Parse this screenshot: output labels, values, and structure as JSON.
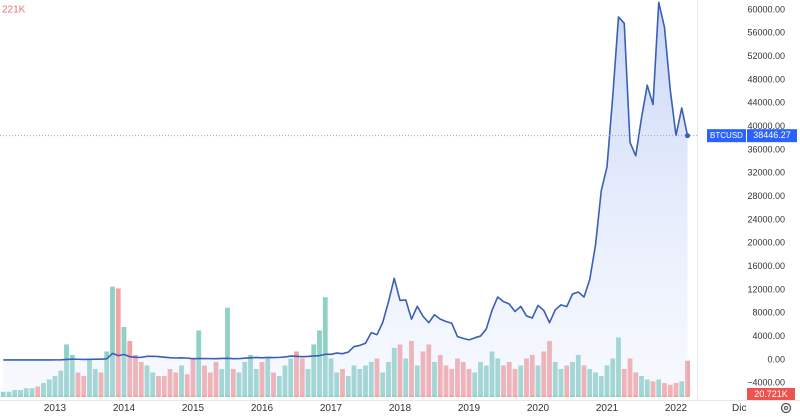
{
  "chart_data": {
    "type": "line",
    "categories": [
      null,
      null,
      null,
      null,
      null,
      null,
      null,
      null,
      null,
      "2013",
      null,
      null,
      null,
      null,
      null,
      null,
      null,
      null,
      null,
      null,
      null,
      "2014",
      null,
      null,
      null,
      null,
      null,
      null,
      null,
      null,
      null,
      null,
      null,
      "2015",
      null,
      null,
      null,
      null,
      null,
      null,
      null,
      null,
      null,
      null,
      null,
      "2016",
      null,
      null,
      null,
      null,
      null,
      null,
      null,
      null,
      null,
      null,
      null,
      "2017",
      null,
      null,
      null,
      null,
      null,
      null,
      null,
      null,
      null,
      null,
      null,
      "2018",
      null,
      null,
      null,
      null,
      null,
      null,
      null,
      null,
      null,
      null,
      null,
      "2019",
      null,
      null,
      null,
      null,
      null,
      null,
      null,
      null,
      null,
      null,
      null,
      "2020",
      null,
      null,
      null,
      null,
      null,
      null,
      null,
      null,
      null,
      null,
      null,
      "2021",
      null,
      null,
      null,
      null,
      null,
      null,
      null,
      null,
      null,
      null,
      null,
      "2022",
      null,
      null,
      null,
      null,
      null,
      null,
      null,
      null,
      null,
      null,
      "Dic"
    ],
    "series": [
      {
        "name": "BTCUSD",
        "color": "#3a5fb5",
        "values": [
          5,
          5,
          7,
          9,
          10,
          12,
          11,
          12,
          13,
          20,
          33,
          93,
          139,
          129,
          97,
          106,
          135,
          133,
          198,
          1130,
          750,
          940,
          570,
          460,
          450,
          630,
          640,
          590,
          480,
          390,
          340,
          380,
          320,
          220,
          250,
          245,
          235,
          230,
          260,
          285,
          230,
          235,
          315,
          380,
          430,
          370,
          435,
          415,
          450,
          530,
          670,
          625,
          575,
          610,
          700,
          745,
          965,
          970,
          1190,
          1080,
          1350,
          2300,
          2500,
          2870,
          4700,
          4340,
          6450,
          10000,
          14000,
          10200,
          10300,
          7000,
          9200,
          7500,
          6400,
          7750,
          7000,
          6600,
          6300,
          4000,
          3700,
          3450,
          3800,
          4100,
          5300,
          8500,
          10800,
          10000,
          9600,
          8300,
          9200,
          7550,
          7200,
          9350,
          8500,
          6400,
          8600,
          9450,
          9150,
          11300,
          11650,
          10800,
          13800,
          19700,
          29000,
          33100,
          45200,
          58800,
          57700,
          37300,
          35000,
          41500,
          47100,
          43800,
          61300,
          57000,
          46300,
          38500,
          43200,
          38446.27,
          null,
          null,
          null,
          null,
          null,
          null,
          null,
          null,
          null
        ]
      }
    ],
    "ylim": [
      -6000,
      61700
    ],
    "yticks": [
      {
        "value": 60000,
        "label": "60000.00"
      },
      {
        "value": 56000,
        "label": "56000.00"
      },
      {
        "value": 52000,
        "label": "52000.00"
      },
      {
        "value": 48000,
        "label": "48000.00"
      },
      {
        "value": 44000,
        "label": "44000.00"
      },
      {
        "value": 40000,
        "label": "40000.00"
      },
      {
        "value": 36000,
        "label": "36000.00"
      },
      {
        "value": 32000,
        "label": "32000.00"
      },
      {
        "value": 28000,
        "label": "28000.00"
      },
      {
        "value": 24000,
        "label": "24000.00"
      },
      {
        "value": 20000,
        "label": "20000.00"
      },
      {
        "value": 16000,
        "label": "16000.00"
      },
      {
        "value": 12000,
        "label": "12000.00"
      },
      {
        "value": 8000,
        "label": "8000.00"
      },
      {
        "value": 4000,
        "label": "4000.00"
      },
      {
        "value": 0,
        "label": "0.00"
      },
      {
        "value": -4000,
        "label": "−4000.00"
      }
    ],
    "grid": false,
    "volume": {
      "up_color": "#8fd0c7",
      "down_color": "#f3a3a3",
      "ylim": [
        0,
        221000
      ],
      "yticks": [
        {
          "value": 221000,
          "label": "221K"
        }
      ],
      "last_label": "20.721K",
      "values": [
        3000,
        3000,
        4000,
        4000,
        5000,
        5000,
        6000,
        8000,
        10000,
        12000,
        15000,
        30000,
        24000,
        14000,
        12000,
        22000,
        16000,
        14000,
        26000,
        63000,
        62000,
        40000,
        32000,
        24000,
        20000,
        18000,
        14000,
        12000,
        12000,
        16000,
        14000,
        18000,
        13000,
        22000,
        38000,
        18000,
        14000,
        20000,
        16000,
        51000,
        16000,
        14000,
        20000,
        24000,
        16000,
        20000,
        22000,
        14000,
        12000,
        18000,
        22000,
        26000,
        22000,
        16000,
        30000,
        38000,
        57000,
        22000,
        14000,
        16000,
        12000,
        18000,
        16000,
        18000,
        20000,
        22000,
        14000,
        20000,
        28000,
        30000,
        22000,
        32000,
        18000,
        26000,
        30000,
        20000,
        24000,
        18000,
        16000,
        22000,
        20000,
        16000,
        14000,
        20000,
        18000,
        26000,
        22000,
        18000,
        20000,
        16000,
        18000,
        22000,
        24000,
        18000,
        26000,
        32000,
        20000,
        16000,
        18000,
        20000,
        24000,
        18000,
        16000,
        14000,
        12000,
        18000,
        22000,
        34000,
        16000,
        22000,
        14000,
        12000,
        10000,
        9000,
        10000,
        8000,
        7000,
        8000,
        9000,
        20721,
        null,
        null,
        null,
        null,
        null,
        null,
        null,
        null,
        null
      ]
    }
  }
}
